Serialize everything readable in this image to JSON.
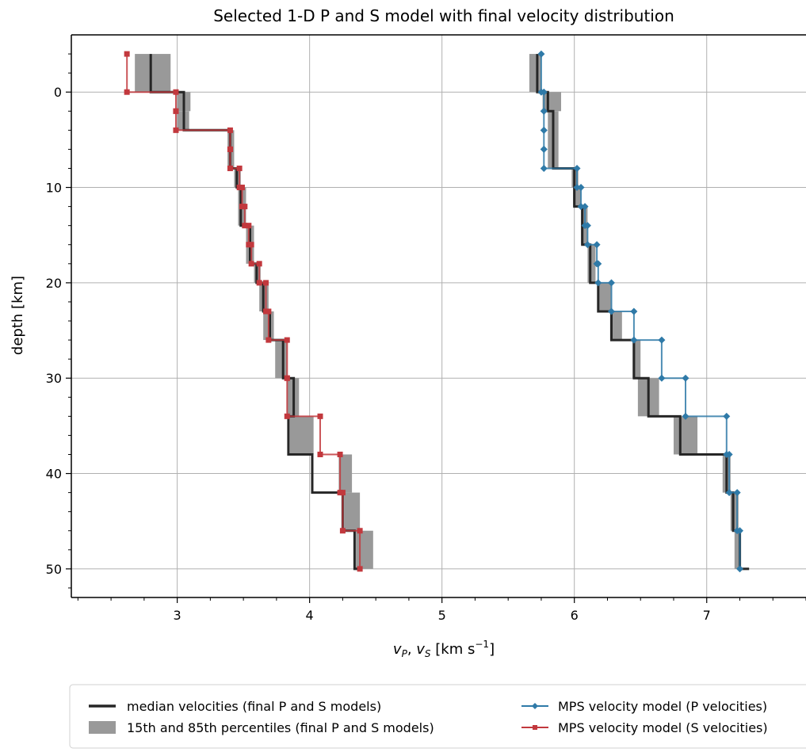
{
  "chart_data": {
    "type": "line",
    "title": "Selected 1-D P and S model with final velocity distribution",
    "xlabel": {
      "base": "v",
      "sub1": "P",
      "sep": ", ",
      "base2": "v",
      "sub2": "S",
      "units_pre": " [km s",
      "sup": "−1",
      "units_post": "]"
    },
    "ylabel": "depth [km]",
    "xlim": [
      2.2,
      7.75
    ],
    "ylim": [
      53,
      -6
    ],
    "y_inverted": true,
    "grid": true,
    "legend_position": "bottom-center",
    "x_ticks": [
      3,
      4,
      5,
      6,
      7
    ],
    "x_tick_labels": [
      "3",
      "4",
      "5",
      "6",
      "7"
    ],
    "y_ticks": [
      0,
      10,
      20,
      30,
      40,
      50
    ],
    "y_tick_labels": [
      "0",
      "10",
      "20",
      "30",
      "40",
      "50"
    ],
    "colors": {
      "median": "#262626",
      "percentile": "#999999",
      "p_model": "#2f7aa8",
      "s_model": "#c2383d"
    },
    "series": [
      {
        "name": "median velocities (final P and S models)",
        "kind": "step",
        "profiles": [
          {
            "depth_edges": [
              -4,
              0,
              4,
              8,
              10,
              14,
              18,
              20,
              23,
              26,
              30,
              34,
              38,
              42,
              46,
              50
            ],
            "values": [
              2.8,
              3.05,
              3.4,
              3.45,
              3.48,
              3.55,
              3.6,
              3.65,
              3.7,
              3.8,
              3.88,
              3.84,
              4.02,
              4.25,
              4.34,
              4.4
            ]
          },
          {
            "depth_edges": [
              -4,
              0,
              2,
              8,
              12,
              16,
              20,
              23,
              26,
              30,
              34,
              38,
              42,
              46,
              50
            ],
            "values": [
              5.72,
              5.8,
              5.84,
              6.0,
              6.06,
              6.12,
              6.18,
              6.28,
              6.45,
              6.56,
              6.8,
              7.15,
              7.2,
              7.25,
              7.32
            ]
          }
        ]
      },
      {
        "name": "15th and 85th percentiles (final P and S models)",
        "kind": "band",
        "layers": [
          [
            -4,
            0,
            2.68,
            2.95
          ],
          [
            0,
            2,
            3.0,
            3.1
          ],
          [
            2,
            4,
            3.0,
            3.09
          ],
          [
            4,
            8,
            3.38,
            3.43
          ],
          [
            8,
            10,
            3.43,
            3.48
          ],
          [
            10,
            14,
            3.46,
            3.52
          ],
          [
            14,
            18,
            3.52,
            3.58
          ],
          [
            18,
            20,
            3.58,
            3.63
          ],
          [
            20,
            23,
            3.62,
            3.69
          ],
          [
            23,
            26,
            3.65,
            3.73
          ],
          [
            26,
            30,
            3.74,
            3.83
          ],
          [
            30,
            34,
            3.83,
            3.92
          ],
          [
            34,
            38,
            3.85,
            4.03
          ],
          [
            38,
            42,
            4.22,
            4.32
          ],
          [
            42,
            46,
            4.26,
            4.38
          ],
          [
            46,
            50,
            4.35,
            4.48
          ],
          [
            -4,
            0,
            5.66,
            5.75
          ],
          [
            0,
            2,
            5.76,
            5.9
          ],
          [
            2,
            8,
            5.8,
            5.88
          ],
          [
            8,
            10,
            5.98,
            6.03
          ],
          [
            10,
            12,
            5.99,
            6.05
          ],
          [
            12,
            16,
            6.05,
            6.1
          ],
          [
            16,
            20,
            6.1,
            6.16
          ],
          [
            20,
            23,
            6.18,
            6.28
          ],
          [
            23,
            26,
            6.27,
            6.36
          ],
          [
            26,
            30,
            6.44,
            6.5
          ],
          [
            30,
            34,
            6.48,
            6.64
          ],
          [
            34,
            38,
            6.75,
            6.93
          ],
          [
            38,
            42,
            7.12,
            7.18
          ],
          [
            42,
            46,
            7.18,
            7.24
          ],
          [
            46,
            50,
            7.21,
            7.26
          ]
        ]
      },
      {
        "name": "MPS velocity model (P velocities)",
        "kind": "step-markers",
        "marker": "diamond",
        "depth_edges": [
          -4,
          0,
          2,
          4,
          6,
          8,
          10,
          12,
          14,
          16,
          18,
          20,
          23,
          26,
          30,
          34,
          38,
          42,
          46,
          50
        ],
        "values": [
          5.75,
          5.77,
          5.77,
          5.77,
          5.77,
          6.02,
          6.05,
          6.08,
          6.1,
          6.17,
          6.18,
          6.28,
          6.45,
          6.66,
          6.84,
          7.15,
          7.17,
          7.23,
          7.25
        ]
      },
      {
        "name": "MPS velocity model (S velocities)",
        "kind": "step-markers",
        "marker": "square",
        "depth_edges": [
          -4,
          0,
          2,
          4,
          6,
          8,
          10,
          12,
          14,
          16,
          18,
          20,
          23,
          26,
          30,
          34,
          38,
          42,
          46,
          50
        ],
        "values": [
          2.62,
          2.99,
          2.99,
          3.4,
          3.4,
          3.47,
          3.49,
          3.51,
          3.54,
          3.56,
          3.62,
          3.67,
          3.69,
          3.83,
          3.83,
          4.08,
          4.23,
          4.25,
          4.38
        ]
      }
    ]
  }
}
